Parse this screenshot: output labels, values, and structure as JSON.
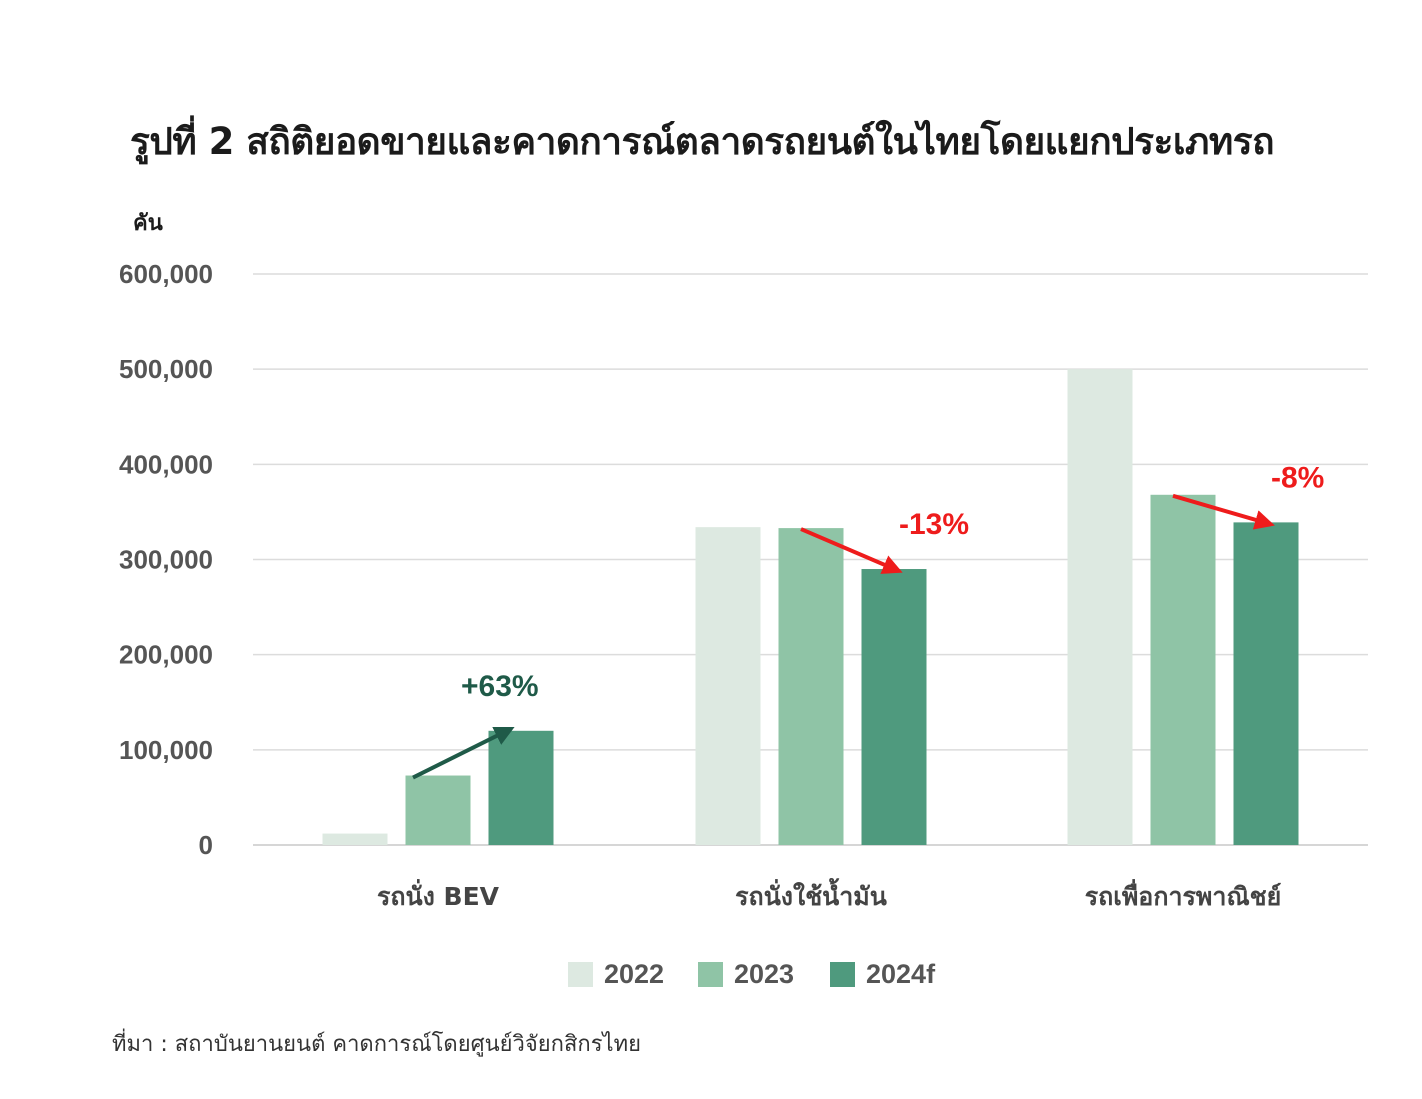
{
  "title": "รูปที่ 2 สถิติยอดขายและคาดการณ์ตลาดรถยนต์ในไทยโดยแยกประเภทรถ",
  "source": "ที่มา : สถาบันยานยนต์ คาดการณ์โดยศูนย์วิจัยกสิกรไทย",
  "chart_data": {
    "type": "bar",
    "ylabel": "คัน",
    "ylim": [
      0,
      600000
    ],
    "yticks": [
      "0",
      "100,000",
      "200,000",
      "300,000",
      "400,000",
      "500,000",
      "600,000"
    ],
    "ytick_values": [
      0,
      100000,
      200000,
      300000,
      400000,
      500000,
      600000
    ],
    "grid": true,
    "legend_position": "bottom",
    "categories": [
      "รถนั่ง BEV",
      "รถนั่งใช้น้ำมัน",
      "รถเพื่อการพาณิชย์"
    ],
    "series": [
      {
        "name": "2022",
        "color": "#dde9e1",
        "values": [
          12000,
          334000,
          500000
        ]
      },
      {
        "name": "2023",
        "color": "#8fc4a6",
        "values": [
          73000,
          333000,
          368000
        ]
      },
      {
        "name": "2024f",
        "color": "#4f9a7e",
        "values": [
          120000,
          290000,
          339000
        ]
      }
    ],
    "annotations": [
      {
        "text": "+63%",
        "category_index": 0,
        "color": "#1f5a48"
      },
      {
        "text": "-13%",
        "category_index": 1,
        "color": "#ee1c1c"
      },
      {
        "text": "-8%",
        "category_index": 2,
        "color": "#ee1c1c"
      }
    ]
  }
}
